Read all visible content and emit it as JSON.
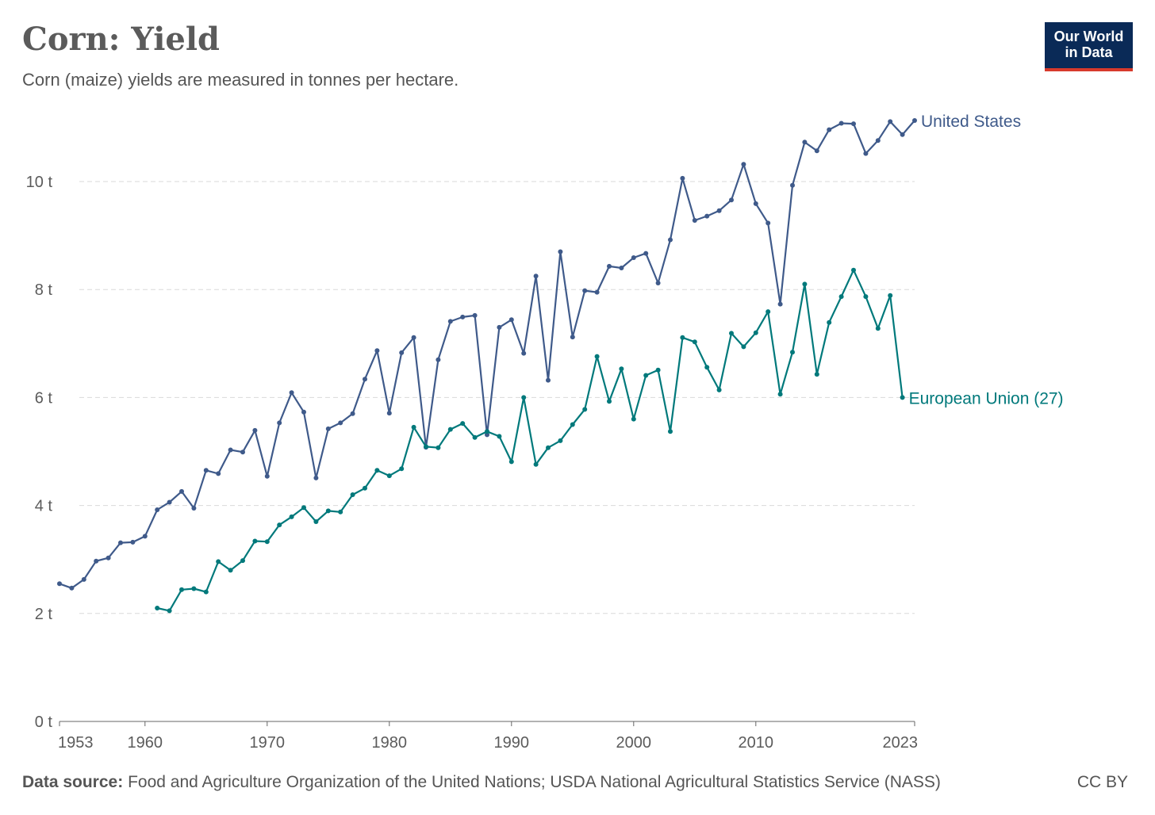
{
  "header": {
    "title": "Corn: Yield",
    "subtitle": "Corn (maize) yields are measured in tonnes per hectare.",
    "logo_line1": "Our World",
    "logo_line2": "in Data"
  },
  "footer": {
    "source_label": "Data source:",
    "source_text": "Food and Agriculture Organization of the United Nations; USDA National Agricultural Statistics Service (NASS)",
    "license": "CC BY"
  },
  "colors": {
    "united_states": "#3f5a8a",
    "european_union": "#00797b",
    "grid": "#d9d9d9",
    "axis": "#666666"
  },
  "chart_data": {
    "type": "line",
    "title": "Corn: Yield",
    "subtitle": "Corn (maize) yields are measured in tonnes per hectare.",
    "ylabel": "",
    "xlabel": "",
    "unit": "t",
    "xlim": [
      1953,
      2023
    ],
    "ylim": [
      0,
      11.2
    ],
    "x_ticks": [
      1953,
      1960,
      1970,
      1980,
      1990,
      2000,
      2010,
      2023
    ],
    "y_ticks": [
      0,
      2,
      4,
      6,
      8,
      10
    ],
    "y_tick_labels": [
      "0 t",
      "2 t",
      "4 t",
      "6 t",
      "8 t",
      "10 t"
    ],
    "grid": "horizontal dashed",
    "legend": "inline labels at line ends",
    "series": [
      {
        "name": "United States",
        "color": "#3f5a8a",
        "start_year": 1953,
        "values": [
          2.55,
          2.47,
          2.63,
          2.97,
          3.03,
          3.31,
          3.32,
          3.43,
          3.92,
          4.06,
          4.26,
          3.95,
          4.65,
          4.59,
          5.03,
          4.99,
          5.39,
          4.54,
          5.53,
          6.09,
          5.73,
          4.51,
          5.42,
          5.53,
          5.7,
          6.34,
          6.87,
          5.71,
          6.83,
          7.11,
          5.08,
          6.7,
          7.41,
          7.49,
          7.52,
          5.31,
          7.3,
          7.44,
          6.82,
          8.25,
          6.32,
          8.7,
          7.12,
          7.98,
          7.95,
          8.43,
          8.4,
          8.59,
          8.67,
          8.12,
          8.92,
          10.06,
          9.28,
          9.36,
          9.46,
          9.66,
          10.32,
          9.59,
          9.23,
          7.73,
          9.93,
          10.73,
          10.57,
          10.96,
          11.08,
          11.07,
          10.52,
          10.76,
          11.11,
          10.87,
          11.13
        ]
      },
      {
        "name": "European Union (27)",
        "color": "#00797b",
        "start_year": 1961,
        "values": [
          2.1,
          2.05,
          2.44,
          2.46,
          2.4,
          2.96,
          2.8,
          2.98,
          3.34,
          3.33,
          3.64,
          3.79,
          3.96,
          3.7,
          3.9,
          3.88,
          4.2,
          4.32,
          4.65,
          4.55,
          4.68,
          5.45,
          5.09,
          5.07,
          5.41,
          5.52,
          5.26,
          5.37,
          5.28,
          4.81,
          6.0,
          4.76,
          5.07,
          5.2,
          5.5,
          5.78,
          6.76,
          5.93,
          6.53,
          5.6,
          6.41,
          6.51,
          5.37,
          7.11,
          7.03,
          6.56,
          6.14,
          7.19,
          6.94,
          7.2,
          7.59,
          6.06,
          6.84,
          8.1,
          6.43,
          7.39,
          7.87,
          8.36,
          7.87,
          7.28,
          7.89,
          6.0
        ]
      }
    ]
  }
}
